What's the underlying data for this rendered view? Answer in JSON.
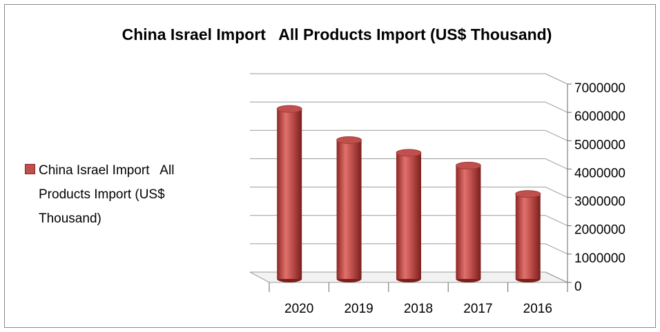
{
  "chart_data": {
    "type": "bar",
    "title": "China Israel Import   All Products Import (US$ Thousand)",
    "categories": [
      "2020",
      "2019",
      "2018",
      "2017",
      "2016"
    ],
    "series": [
      {
        "name": "China Israel Import   All Products Import (US$ Thousand)",
        "color": "#c0504d",
        "values": [
          6000000,
          4900000,
          4450000,
          4000000,
          3000000
        ]
      }
    ],
    "ylim": [
      0,
      7000000
    ],
    "yticks": [
      0,
      1000000,
      2000000,
      3000000,
      4000000,
      5000000,
      6000000,
      7000000
    ],
    "grid": true,
    "legend": "left"
  }
}
